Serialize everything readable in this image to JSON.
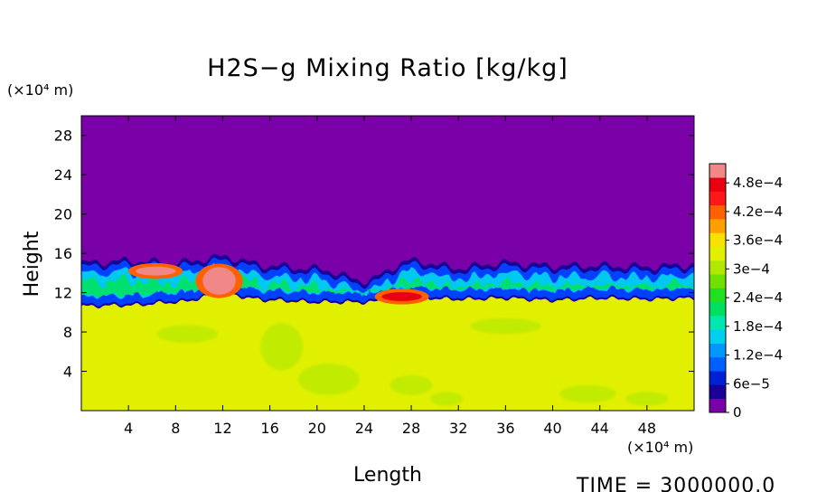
{
  "chart_data": {
    "type": "heatmap",
    "title": "H2S−g Mixing Ratio [kg/kg]",
    "xlabel": "Length",
    "ylabel": "Height",
    "x_units": "(×10⁴ m)",
    "y_units": "(×10⁴ m)",
    "xlim": [
      0,
      52
    ],
    "ylim": [
      0,
      30
    ],
    "x_ticks": [
      4,
      8,
      12,
      16,
      20,
      24,
      28,
      32,
      36,
      40,
      44,
      48
    ],
    "x_tick_labels": [
      "4",
      "8",
      "12",
      "16",
      "20",
      "24",
      "28",
      "32",
      "36",
      "40",
      "44",
      "48"
    ],
    "y_ticks": [
      4,
      8,
      12,
      16,
      20,
      24,
      28
    ],
    "y_tick_labels": [
      "4",
      "8",
      "12",
      "16",
      "20",
      "24",
      "28"
    ],
    "colorbar": {
      "range": [
        0,
        0.00052
      ],
      "tick_values": [
        0,
        6e-05,
        0.00012,
        0.00018,
        0.00024,
        0.0003,
        0.00036,
        0.00042,
        0.00048
      ],
      "tick_labels": [
        "0",
        "6e−5",
        "1.2e−4",
        "1.8e−4",
        "2.4e−4",
        "3e−4",
        "3.6e−4",
        "4.2e−4",
        "4.8e−4"
      ],
      "colors": [
        "#7a00a8",
        "#1a0096",
        "#0020d8",
        "#0060ff",
        "#0098ff",
        "#00d0f0",
        "#00e8b0",
        "#00e060",
        "#20e020",
        "#70e000",
        "#b0e800",
        "#e0f000",
        "#f8e000",
        "#ffa000",
        "#ff6000",
        "#ff1818",
        "#e80010",
        "#f08888"
      ]
    },
    "regions": {
      "lower_layer_value": 0.000345,
      "upper_layer_value": 0,
      "interface_height_profile": {
        "x": [
          0,
          4,
          8,
          12,
          16,
          20,
          24,
          28,
          32,
          36,
          40,
          44,
          48,
          52
        ],
        "y": [
          14.8,
          15,
          14.8,
          15.4,
          14.5,
          14.2,
          13,
          15,
          14.3,
          14.8,
          14.5,
          14.5,
          14.4,
          14.6
        ]
      },
      "lower_layer_top_profile": {
        "x": [
          0,
          4,
          8,
          12,
          16,
          20,
          24,
          28,
          32,
          36,
          40,
          44,
          48,
          52
        ],
        "y": [
          10.6,
          10.7,
          11,
          11.8,
          11.2,
          11,
          11,
          11.5,
          11.3,
          11.4,
          11.2,
          11.4,
          11.3,
          11.4
        ]
      },
      "high_value_patches": [
        {
          "x": 6.3,
          "y": 14.2,
          "value": 0.00051
        },
        {
          "x": 11.7,
          "y": 13.2,
          "value": 0.00051
        },
        {
          "x": 27.2,
          "y": 11.6,
          "value": 0.00048
        }
      ]
    },
    "annotation": "TIME = 3000000.0"
  }
}
